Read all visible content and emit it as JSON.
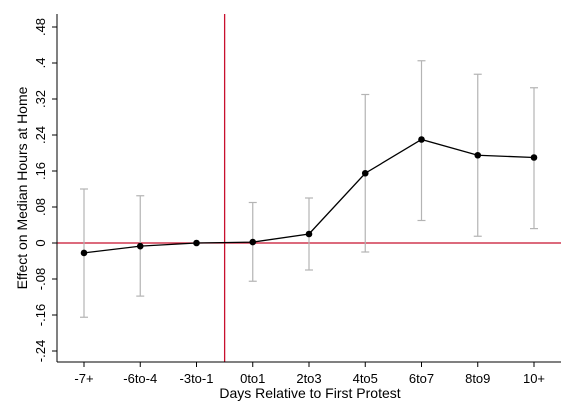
{
  "chart_data": {
    "type": "line",
    "title": "",
    "xlabel": "Days Relative to First Protest",
    "ylabel": "Effect on Median Hours at Home",
    "categories": [
      "-7+",
      "-6to-4",
      "-3to-1",
      "0to1",
      "2to3",
      "4to5",
      "6to7",
      "8to9",
      "10+"
    ],
    "y_ticks": [
      -0.24,
      -0.16,
      -0.08,
      0,
      0.08,
      0.16,
      0.24,
      0.32,
      0.4,
      0.48
    ],
    "y_tick_labels": [
      "-.24",
      "-.16",
      "-.08",
      "0",
      ".08",
      ".16",
      ".24",
      ".32",
      ".4",
      ".48"
    ],
    "ylim": [
      -0.26,
      0.5
    ],
    "series": [
      {
        "values": [
          -0.022,
          -0.007,
          0.0,
          0.002,
          0.02,
          0.155,
          0.23,
          0.195,
          0.19
        ],
        "ci_low": [
          -0.165,
          -0.118,
          0.0,
          -0.085,
          -0.06,
          -0.02,
          0.05,
          0.015,
          0.032
        ],
        "ci_high": [
          0.12,
          0.105,
          0.0,
          0.09,
          0.1,
          0.33,
          0.405,
          0.375,
          0.345
        ]
      }
    ],
    "reference_lines": {
      "horizontal_y": 0,
      "vertical_between": [
        "-3to-1",
        "0to1"
      ]
    },
    "colors": {
      "line": "#000000",
      "marker": "#000000",
      "error_bar": "#b4b4b4",
      "reference": "#c8102e"
    },
    "grid": false,
    "legend": "none"
  }
}
